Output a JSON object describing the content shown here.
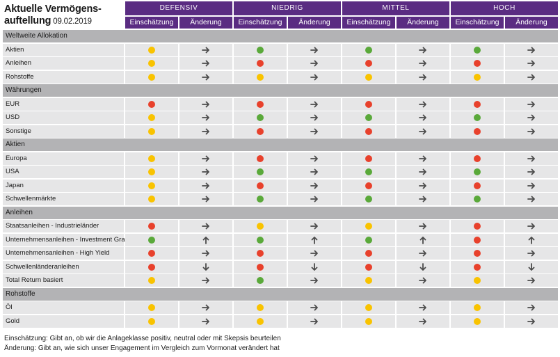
{
  "title": {
    "line1": "Aktuelle Vermögens-",
    "line2": "auftellung",
    "date": "09.02.2019"
  },
  "profiles": [
    "DEFENSIV",
    "NIEDRIG",
    "MITTEL",
    "HOCH"
  ],
  "subheaders": {
    "rating": "Einschätzung",
    "change": "Änderung"
  },
  "legend": {
    "colors": {
      "yellow": "#f9c300",
      "green": "#5aa93a",
      "red": "#e8412c"
    }
  },
  "sections": [
    {
      "title": "Weltweite Allokation",
      "rows": [
        {
          "label": "Aktien",
          "cells": [
            [
              "yellow",
              "right"
            ],
            [
              "green",
              "right"
            ],
            [
              "green",
              "right"
            ],
            [
              "green",
              "right"
            ]
          ]
        },
        {
          "label": "Anleihen",
          "cells": [
            [
              "yellow",
              "right"
            ],
            [
              "red",
              "right"
            ],
            [
              "red",
              "right"
            ],
            [
              "red",
              "right"
            ]
          ]
        },
        {
          "label": "Rohstoffe",
          "cells": [
            [
              "yellow",
              "right"
            ],
            [
              "yellow",
              "right"
            ],
            [
              "yellow",
              "right"
            ],
            [
              "yellow",
              "right"
            ]
          ]
        }
      ]
    },
    {
      "title": "Währungen",
      "rows": [
        {
          "label": "EUR",
          "cells": [
            [
              "red",
              "right"
            ],
            [
              "red",
              "right"
            ],
            [
              "red",
              "right"
            ],
            [
              "red",
              "right"
            ]
          ]
        },
        {
          "label": "USD",
          "cells": [
            [
              "yellow",
              "right"
            ],
            [
              "green",
              "right"
            ],
            [
              "green",
              "right"
            ],
            [
              "green",
              "right"
            ]
          ]
        },
        {
          "label": "Sonstige",
          "cells": [
            [
              "yellow",
              "right"
            ],
            [
              "red",
              "right"
            ],
            [
              "red",
              "right"
            ],
            [
              "red",
              "right"
            ]
          ]
        }
      ]
    },
    {
      "title": "Aktien",
      "rows": [
        {
          "label": "Europa",
          "cells": [
            [
              "yellow",
              "right"
            ],
            [
              "red",
              "right"
            ],
            [
              "red",
              "right"
            ],
            [
              "red",
              "right"
            ]
          ]
        },
        {
          "label": "USA",
          "cells": [
            [
              "yellow",
              "right"
            ],
            [
              "green",
              "right"
            ],
            [
              "green",
              "right"
            ],
            [
              "green",
              "right"
            ]
          ]
        },
        {
          "label": "Japan",
          "cells": [
            [
              "yellow",
              "right"
            ],
            [
              "red",
              "right"
            ],
            [
              "red",
              "right"
            ],
            [
              "red",
              "right"
            ]
          ]
        },
        {
          "label": "Schwellenmärkte",
          "cells": [
            [
              "yellow",
              "right"
            ],
            [
              "green",
              "right"
            ],
            [
              "green",
              "right"
            ],
            [
              "green",
              "right"
            ]
          ]
        }
      ]
    },
    {
      "title": "Anleihen",
      "rows": [
        {
          "label": "Staatsanleihen - Industrieländer",
          "cells": [
            [
              "red",
              "right"
            ],
            [
              "yellow",
              "right"
            ],
            [
              "yellow",
              "right"
            ],
            [
              "red",
              "right"
            ]
          ]
        },
        {
          "label": "Unternehmensanleihen - Investment Grade",
          "cells": [
            [
              "green",
              "up"
            ],
            [
              "green",
              "up"
            ],
            [
              "green",
              "up"
            ],
            [
              "red",
              "up"
            ]
          ]
        },
        {
          "label": "Unternehmensanleihen - High Yield",
          "cells": [
            [
              "red",
              "right"
            ],
            [
              "red",
              "right"
            ],
            [
              "red",
              "right"
            ],
            [
              "red",
              "right"
            ]
          ]
        },
        {
          "label": "Schwellenländeranleihen",
          "cells": [
            [
              "red",
              "down"
            ],
            [
              "red",
              "down"
            ],
            [
              "red",
              "down"
            ],
            [
              "red",
              "down"
            ]
          ]
        },
        {
          "label": "Total Return basiert",
          "cells": [
            [
              "yellow",
              "right"
            ],
            [
              "green",
              "right"
            ],
            [
              "yellow",
              "right"
            ],
            [
              "yellow",
              "right"
            ]
          ]
        }
      ]
    },
    {
      "title": "Rohstoffe",
      "rows": [
        {
          "label": "Öl",
          "cells": [
            [
              "yellow",
              "right"
            ],
            [
              "yellow",
              "right"
            ],
            [
              "yellow",
              "right"
            ],
            [
              "yellow",
              "right"
            ]
          ]
        },
        {
          "label": "Gold",
          "cells": [
            [
              "yellow",
              "right"
            ],
            [
              "yellow",
              "right"
            ],
            [
              "yellow",
              "right"
            ],
            [
              "yellow",
              "right"
            ]
          ]
        }
      ]
    }
  ],
  "footnotes": [
    "Einschätzung: Gibt an, ob wir die Anlageklasse positiv, neutral oder mit Skepsis beurteilen",
    "Änderung: Gibt an, wie sich unser Engagement im Vergleich zum Vormonat verändert hat"
  ]
}
